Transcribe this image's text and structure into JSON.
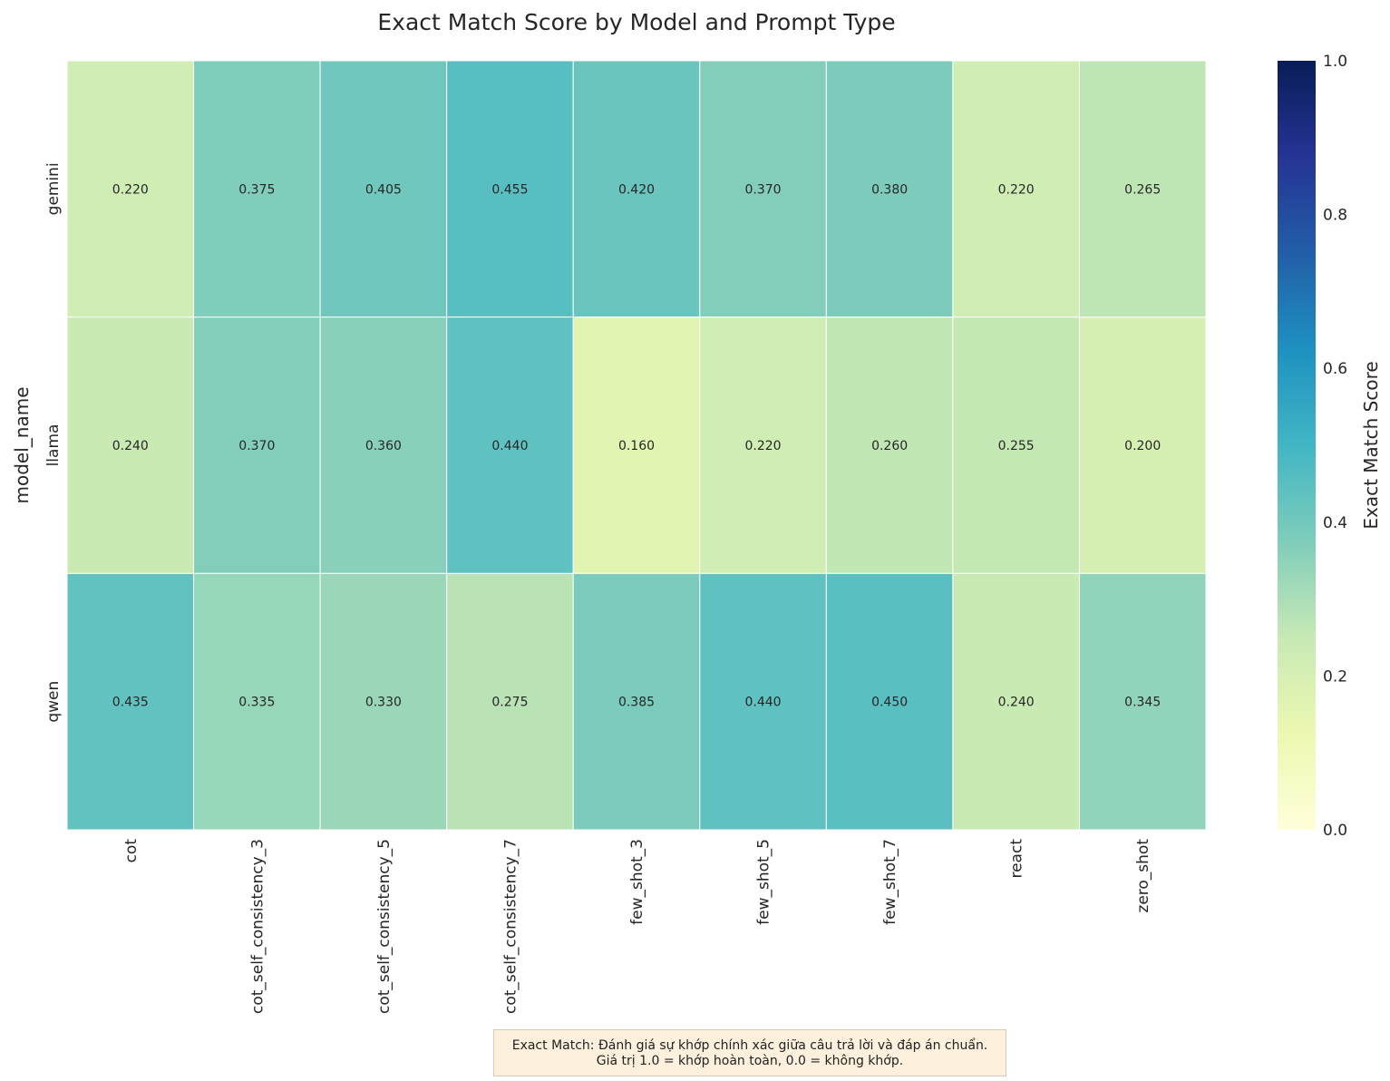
{
  "chart_data": {
    "type": "heatmap",
    "title": "Exact Match Score by Model and Prompt Type",
    "xlabel": "prompt_type",
    "ylabel": "model_name",
    "x_categories": [
      "cot",
      "cot_self_consistency_3",
      "cot_self_consistency_5",
      "cot_self_consistency_7",
      "few_shot_3",
      "few_shot_5",
      "few_shot_7",
      "react",
      "zero_shot"
    ],
    "y_categories": [
      "gemini",
      "llama",
      "qwen"
    ],
    "values": [
      [
        0.22,
        0.375,
        0.405,
        0.455,
        0.42,
        0.37,
        0.38,
        0.22,
        0.265
      ],
      [
        0.24,
        0.37,
        0.36,
        0.44,
        0.16,
        0.22,
        0.26,
        0.255,
        0.2
      ],
      [
        0.435,
        0.335,
        0.33,
        0.275,
        0.385,
        0.44,
        0.45,
        0.24,
        0.345
      ]
    ],
    "value_format": "0.000",
    "colorbar": {
      "label": "Exact Match Score",
      "range": [
        0,
        1
      ],
      "ticks": [
        0.0,
        0.2,
        0.4,
        0.6,
        0.8,
        1.0
      ],
      "tick_labels": [
        "0.0",
        "0.2",
        "0.4",
        "0.6",
        "0.8",
        "1.0"
      ],
      "colormap": "YlGnBu",
      "colors": [
        "#ffffd9",
        "#edf8b1",
        "#c7e9b4",
        "#7fcdbb",
        "#41b6c4",
        "#1d91c0",
        "#225ea8",
        "#253494",
        "#081d58"
      ]
    }
  },
  "note": {
    "line1": "Exact Match: Đánh giá sự khớp chính xác giữa câu trả lời và đáp án chuẩn.",
    "line2": "Giá trị 1.0 = khớp hoàn toàn, 0.0 = không khớp."
  }
}
